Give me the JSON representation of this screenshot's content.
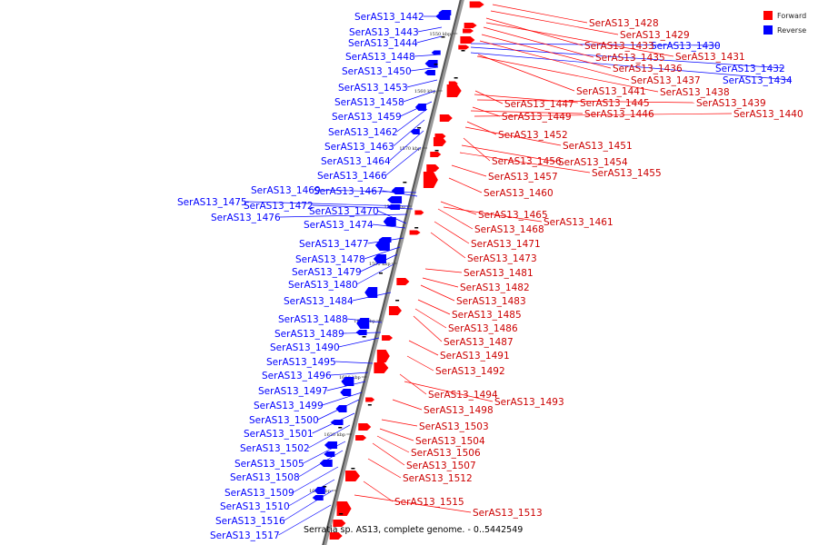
{
  "legend": {
    "forward_label": "Forward",
    "reverse_label": "Reverse",
    "forward_color": "#ff0000",
    "reverse_color": "#0000ff"
  },
  "caption": "Serratia sp. AS13, complete genome. - 0..5442549",
  "axis_ticks": [
    "1550 kbp",
    "1560 kbp",
    "1570 kbp",
    "1580 kbp",
    "1590 kbp",
    "1600 kbp",
    "1610 kbp",
    "1620 kbp",
    "1630 kbp"
  ],
  "reverse_genes": [
    "SerAS13_1442",
    "SerAS13_1443",
    "SerAS13_1444",
    "SerAS13_1448",
    "SerAS13_1450",
    "SerAS13_1453",
    "SerAS13_1458",
    "SerAS13_1459",
    "SerAS13_1462",
    "SerAS13_1463",
    "SerAS13_1464",
    "SerAS13_1466",
    "SerAS13_1469",
    "SerAS13_1467",
    "SerAS13_1475",
    "SerAS13_1472",
    "SerAS13_1476",
    "SerAS13_1470",
    "SerAS13_1474",
    "SerAS13_1477",
    "SerAS13_1478",
    "SerAS13_1479",
    "SerAS13_1480",
    "SerAS13_1484",
    "SerAS13_1488",
    "SerAS13_1489",
    "SerAS13_1490",
    "SerAS13_1495",
    "SerAS13_1496",
    "SerAS13_1497",
    "SerAS13_1499",
    "SerAS13_1500",
    "SerAS13_1501",
    "SerAS13_1502",
    "SerAS13_1505",
    "SerAS13_1508",
    "SerAS13_1509",
    "SerAS13_1510",
    "SerAS13_1516",
    "SerAS13_1517",
    "SerAS13_1430",
    "SerAS13_1432",
    "SerAS13_1434"
  ],
  "forward_genes": [
    "SerAS13_1428",
    "SerAS13_1429",
    "SerAS13_1433",
    "SerAS13_1431",
    "SerAS13_1435",
    "SerAS13_1436",
    "SerAS13_1437",
    "SerAS13_1441",
    "SerAS13_1438",
    "SerAS13_1447",
    "SerAS13_1445",
    "SerAS13_1439",
    "SerAS13_1449",
    "SerAS13_1446",
    "SerAS13_1440",
    "SerAS13_1452",
    "SerAS13_1451",
    "SerAS13_1456",
    "SerAS13_1454",
    "SerAS13_1455",
    "SerAS13_1457",
    "SerAS13_1460",
    "SerAS13_1465",
    "SerAS13_1461",
    "SerAS13_1468",
    "SerAS13_1471",
    "SerAS13_1473",
    "SerAS13_1481",
    "SerAS13_1482",
    "SerAS13_1483",
    "SerAS13_1485",
    "SerAS13_1486",
    "SerAS13_1487",
    "SerAS13_1491",
    "SerAS13_1492",
    "SerAS13_1494",
    "SerAS13_1493",
    "SerAS13_1498",
    "SerAS13_1503",
    "SerAS13_1504",
    "SerAS13_1506",
    "SerAS13_1507",
    "SerAS13_1512",
    "SerAS13_1515",
    "SerAS13_1513"
  ]
}
